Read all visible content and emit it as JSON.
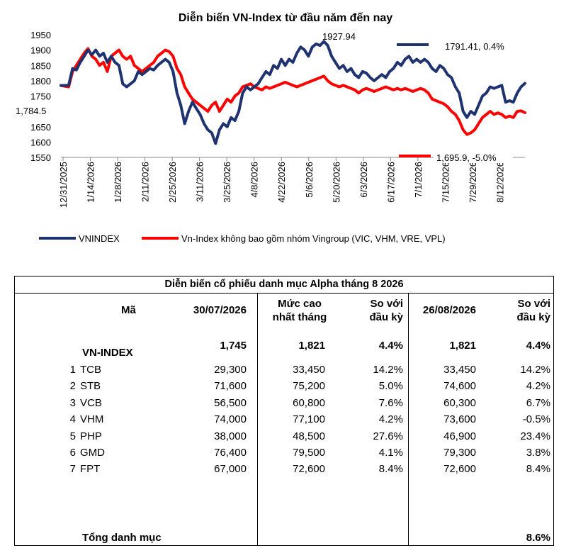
{
  "chart_data": {
    "type": "line",
    "title": "Diễn biến VN-Index từ đầu năm đến nay",
    "x_tick_labels": [
      "12/31/2025",
      "1/14/2026",
      "1/28/2026",
      "2/11/2026",
      "2/25/2026",
      "3/11/2026",
      "3/25/2026",
      "4/8/2026",
      "4/22/2026",
      "5/6/2026",
      "5/20/2026",
      "6/3/2026",
      "6/17/2026",
      "7/1/2026",
      "7/15/2026",
      "7/29/2026",
      "8/12/2026"
    ],
    "y_ticks": [
      1550,
      1600,
      1650,
      1700,
      1750,
      1800,
      1850,
      1900,
      1950
    ],
    "ylim": [
      1550,
      1950
    ],
    "x_range_days": [
      0,
      240
    ],
    "legend_position": "bottom",
    "grid": false,
    "series": [
      {
        "name": "VNINDEX",
        "color": "#1f3370",
        "points": [
          [
            0,
            1784.5
          ],
          [
            4,
            1785
          ],
          [
            6,
            1840
          ],
          [
            8,
            1835
          ],
          [
            10,
            1860
          ],
          [
            12,
            1880
          ],
          [
            14,
            1900
          ],
          [
            16,
            1885
          ],
          [
            18,
            1900
          ],
          [
            20,
            1880
          ],
          [
            22,
            1890
          ],
          [
            24,
            1860
          ],
          [
            26,
            1880
          ],
          [
            28,
            1860
          ],
          [
            30,
            1850
          ],
          [
            32,
            1790
          ],
          [
            34,
            1780
          ],
          [
            36,
            1790
          ],
          [
            38,
            1800
          ],
          [
            40,
            1830
          ],
          [
            42,
            1820
          ],
          [
            44,
            1830
          ],
          [
            46,
            1840
          ],
          [
            48,
            1835
          ],
          [
            50,
            1850
          ],
          [
            52,
            1860
          ],
          [
            54,
            1870
          ],
          [
            56,
            1860
          ],
          [
            58,
            1830
          ],
          [
            60,
            1760
          ],
          [
            62,
            1720
          ],
          [
            64,
            1660
          ],
          [
            66,
            1700
          ],
          [
            68,
            1730
          ],
          [
            70,
            1710
          ],
          [
            72,
            1690
          ],
          [
            74,
            1660
          ],
          [
            76,
            1640
          ],
          [
            78,
            1630
          ],
          [
            80,
            1595
          ],
          [
            82,
            1640
          ],
          [
            84,
            1660
          ],
          [
            86,
            1650
          ],
          [
            88,
            1680
          ],
          [
            90,
            1670
          ],
          [
            92,
            1700
          ],
          [
            94,
            1760
          ],
          [
            96,
            1780
          ],
          [
            98,
            1770
          ],
          [
            100,
            1780
          ],
          [
            102,
            1790
          ],
          [
            104,
            1810
          ],
          [
            106,
            1830
          ],
          [
            108,
            1820
          ],
          [
            110,
            1850
          ],
          [
            112,
            1840
          ],
          [
            114,
            1870
          ],
          [
            116,
            1850
          ],
          [
            118,
            1870
          ],
          [
            120,
            1860
          ],
          [
            122,
            1890
          ],
          [
            124,
            1910
          ],
          [
            126,
            1900
          ],
          [
            128,
            1880
          ],
          [
            130,
            1910
          ],
          [
            132,
            1920
          ],
          [
            134,
            1915
          ],
          [
            136,
            1927.94
          ],
          [
            138,
            1915
          ],
          [
            140,
            1880
          ],
          [
            142,
            1860
          ],
          [
            144,
            1840
          ],
          [
            146,
            1850
          ],
          [
            148,
            1830
          ],
          [
            150,
            1840
          ],
          [
            152,
            1820
          ],
          [
            154,
            1810
          ],
          [
            156,
            1830
          ],
          [
            158,
            1825
          ],
          [
            160,
            1810
          ],
          [
            162,
            1800
          ],
          [
            164,
            1810
          ],
          [
            166,
            1820
          ],
          [
            168,
            1810
          ],
          [
            170,
            1830
          ],
          [
            172,
            1840
          ],
          [
            174,
            1860
          ],
          [
            176,
            1850
          ],
          [
            178,
            1870
          ],
          [
            180,
            1880
          ],
          [
            182,
            1860
          ],
          [
            184,
            1870
          ],
          [
            186,
            1860
          ],
          [
            188,
            1870
          ],
          [
            190,
            1860
          ],
          [
            192,
            1840
          ],
          [
            194,
            1830
          ],
          [
            196,
            1850
          ],
          [
            198,
            1840
          ],
          [
            200,
            1820
          ],
          [
            202,
            1810
          ],
          [
            204,
            1780
          ],
          [
            206,
            1760
          ],
          [
            208,
            1700
          ],
          [
            210,
            1680
          ],
          [
            212,
            1700
          ],
          [
            214,
            1690
          ],
          [
            216,
            1720
          ],
          [
            218,
            1750
          ],
          [
            220,
            1760
          ],
          [
            222,
            1780
          ],
          [
            224,
            1775
          ],
          [
            226,
            1780
          ],
          [
            228,
            1785
          ],
          [
            230,
            1730
          ],
          [
            232,
            1735
          ],
          [
            234,
            1730
          ],
          [
            236,
            1760
          ],
          [
            238,
            1780
          ],
          [
            240,
            1791.41
          ]
        ]
      },
      {
        "name": "Vn-Index không bao gồm nhóm Vingroup (VIC, VHM, VRE, VPL)",
        "color": "#ff0000",
        "points": [
          [
            0,
            1784.5
          ],
          [
            4,
            1780
          ],
          [
            6,
            1830
          ],
          [
            8,
            1850
          ],
          [
            10,
            1870
          ],
          [
            12,
            1890
          ],
          [
            14,
            1905
          ],
          [
            16,
            1880
          ],
          [
            18,
            1870
          ],
          [
            20,
            1850
          ],
          [
            22,
            1860
          ],
          [
            24,
            1830
          ],
          [
            26,
            1880
          ],
          [
            28,
            1890
          ],
          [
            30,
            1900
          ],
          [
            32,
            1880
          ],
          [
            34,
            1870
          ],
          [
            36,
            1880
          ],
          [
            38,
            1850
          ],
          [
            40,
            1840
          ],
          [
            42,
            1830
          ],
          [
            44,
            1840
          ],
          [
            46,
            1850
          ],
          [
            48,
            1860
          ],
          [
            50,
            1880
          ],
          [
            52,
            1890
          ],
          [
            54,
            1900
          ],
          [
            56,
            1895
          ],
          [
            58,
            1880
          ],
          [
            60,
            1840
          ],
          [
            62,
            1820
          ],
          [
            64,
            1780
          ],
          [
            66,
            1760
          ],
          [
            68,
            1740
          ],
          [
            70,
            1730
          ],
          [
            72,
            1720
          ],
          [
            74,
            1710
          ],
          [
            76,
            1700
          ],
          [
            78,
            1720
          ],
          [
            80,
            1730
          ],
          [
            82,
            1700
          ],
          [
            84,
            1720
          ],
          [
            86,
            1740
          ],
          [
            88,
            1730
          ],
          [
            90,
            1750
          ],
          [
            92,
            1760
          ],
          [
            94,
            1780
          ],
          [
            96,
            1785
          ],
          [
            98,
            1790
          ],
          [
            100,
            1780
          ],
          [
            102,
            1775
          ],
          [
            104,
            1770
          ],
          [
            106,
            1780
          ],
          [
            108,
            1775
          ],
          [
            110,
            1780
          ],
          [
            112,
            1785
          ],
          [
            114,
            1790
          ],
          [
            116,
            1795
          ],
          [
            118,
            1790
          ],
          [
            120,
            1785
          ],
          [
            122,
            1780
          ],
          [
            124,
            1785
          ],
          [
            126,
            1790
          ],
          [
            128,
            1795
          ],
          [
            130,
            1800
          ],
          [
            132,
            1805
          ],
          [
            134,
            1810
          ],
          [
            136,
            1815
          ],
          [
            138,
            1800
          ],
          [
            140,
            1790
          ],
          [
            142,
            1785
          ],
          [
            144,
            1780
          ],
          [
            146,
            1785
          ],
          [
            148,
            1780
          ],
          [
            150,
            1775
          ],
          [
            152,
            1770
          ],
          [
            154,
            1760
          ],
          [
            156,
            1770
          ],
          [
            158,
            1775
          ],
          [
            160,
            1770
          ],
          [
            162,
            1765
          ],
          [
            164,
            1770
          ],
          [
            166,
            1775
          ],
          [
            168,
            1780
          ],
          [
            170,
            1775
          ],
          [
            172,
            1770
          ],
          [
            174,
            1775
          ],
          [
            176,
            1770
          ],
          [
            178,
            1775
          ],
          [
            180,
            1770
          ],
          [
            182,
            1765
          ],
          [
            184,
            1770
          ],
          [
            186,
            1775
          ],
          [
            188,
            1770
          ],
          [
            190,
            1760
          ],
          [
            192,
            1740
          ],
          [
            194,
            1735
          ],
          [
            196,
            1730
          ],
          [
            198,
            1725
          ],
          [
            200,
            1715
          ],
          [
            202,
            1700
          ],
          [
            204,
            1690
          ],
          [
            206,
            1670
          ],
          [
            208,
            1640
          ],
          [
            210,
            1625
          ],
          [
            212,
            1630
          ],
          [
            214,
            1640
          ],
          [
            216,
            1660
          ],
          [
            218,
            1680
          ],
          [
            220,
            1690
          ],
          [
            222,
            1700
          ],
          [
            224,
            1690
          ],
          [
            226,
            1695
          ],
          [
            228,
            1690
          ],
          [
            230,
            1680
          ],
          [
            232,
            1685
          ],
          [
            234,
            1680
          ],
          [
            236,
            1700
          ],
          [
            238,
            1702
          ],
          [
            240,
            1695.9
          ]
        ]
      }
    ],
    "annotations": {
      "start": "1,784.5",
      "peak": "1927.94",
      "vn_end": "1791.41, 0.4%",
      "red_end": "1,695.9, -5.0%"
    }
  },
  "table": {
    "title": "Diễn biến cổ phiếu danh mục Alpha tháng 8 2026",
    "headers": {
      "ma": "Mã",
      "date1": "30/07/2026",
      "high1": "Mức cao",
      "high2": "nhất tháng",
      "cmp1_1": "So với",
      "cmp1_2": "đầu kỳ",
      "date2": "26/08/2026",
      "cmp2_1": "So với",
      "cmp2_2": "đầu kỳ"
    },
    "index_row": {
      "name": "VN-INDEX",
      "v1": "1,745",
      "high": "1,821",
      "chg1": "4.4%",
      "v2": "1,821",
      "chg2": "4.4%"
    },
    "rows": [
      {
        "no": "1",
        "code": "TCB",
        "v1": "29,300",
        "high": "33,450",
        "chg1": "14.2%",
        "v2": "33,450",
        "chg2": "14.2%"
      },
      {
        "no": "2",
        "code": "STB",
        "v1": "71,600",
        "high": "75,200",
        "chg1": "5.0%",
        "v2": "74,600",
        "chg2": "4.2%"
      },
      {
        "no": "3",
        "code": "VCB",
        "v1": "56,500",
        "high": "60,800",
        "chg1": "7.6%",
        "v2": "60,300",
        "chg2": "6.7%"
      },
      {
        "no": "4",
        "code": "VHM",
        "v1": "74,000",
        "high": "77,100",
        "chg1": "4.2%",
        "v2": "73,600",
        "chg2": "-0.5%"
      },
      {
        "no": "5",
        "code": "PHP",
        "v1": "38,000",
        "high": "48,500",
        "chg1": "27.6%",
        "v2": "46,900",
        "chg2": "23.4%"
      },
      {
        "no": "6",
        "code": "GMD",
        "v1": "76,400",
        "high": "79,500",
        "chg1": "4.1%",
        "v2": "79,300",
        "chg2": "3.8%"
      },
      {
        "no": "7",
        "code": "FPT",
        "v1": "67,000",
        "high": "72,600",
        "chg1": "8.4%",
        "v2": "72,600",
        "chg2": "8.4%"
      }
    ],
    "total": {
      "label": "Tổng danh mục",
      "value": "8.6%"
    }
  }
}
